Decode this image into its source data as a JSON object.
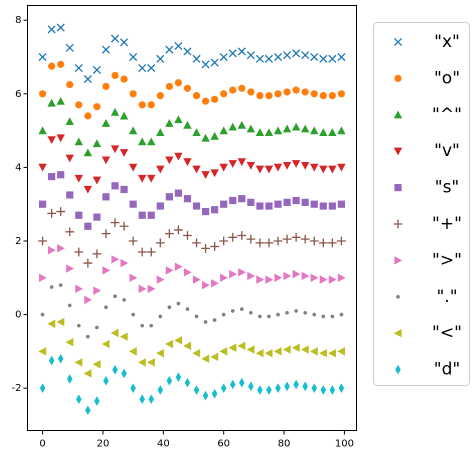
{
  "chart_data": {
    "type": "scatter",
    "x": [
      0,
      3,
      6,
      9,
      12,
      15,
      18,
      21,
      24,
      27,
      30,
      33,
      36,
      39,
      42,
      45,
      48,
      51,
      54,
      57,
      60,
      63,
      66,
      69,
      72,
      75,
      78,
      81,
      84,
      87,
      90,
      93,
      96,
      99
    ],
    "xlim": [
      -5,
      104
    ],
    "xticks": [
      0,
      20,
      40,
      60,
      80,
      100
    ],
    "ylim": [
      -3.15,
      8.4
    ],
    "yticks": [
      -2,
      0,
      2,
      4,
      6,
      8
    ],
    "legend": "outside right",
    "series": [
      {
        "name": "\"x\"",
        "marker": "x",
        "color": "#1f77b4",
        "values": [
          7,
          7.75,
          7.8,
          7.25,
          6.7,
          6.4,
          6.65,
          7.2,
          7.5,
          7.4,
          7,
          6.7,
          6.7,
          6.95,
          7.2,
          7.3,
          7.15,
          6.95,
          6.8,
          6.85,
          7,
          7.1,
          7.15,
          7.05,
          6.95,
          6.95,
          7,
          7.05,
          7.1,
          7.05,
          7,
          6.95,
          6.95,
          7
        ]
      },
      {
        "name": "\"o\"",
        "marker": "o",
        "color": "#ff7f0e",
        "values": [
          6,
          6.75,
          6.8,
          6.25,
          5.7,
          5.4,
          5.65,
          6.2,
          6.5,
          6.4,
          6,
          5.7,
          5.7,
          5.95,
          6.2,
          6.3,
          6.15,
          5.95,
          5.8,
          5.85,
          6,
          6.1,
          6.15,
          6.05,
          5.95,
          5.95,
          6,
          6.05,
          6.1,
          6.05,
          6,
          5.95,
          5.95,
          6
        ]
      },
      {
        "name": "\"^\"",
        "marker": "^",
        "color": "#2ca02c",
        "values": [
          5,
          5.75,
          5.8,
          5.25,
          4.7,
          4.4,
          4.65,
          5.2,
          5.5,
          5.4,
          5,
          4.7,
          4.7,
          4.95,
          5.2,
          5.3,
          5.15,
          4.95,
          4.8,
          4.85,
          5,
          5.1,
          5.15,
          5.05,
          4.95,
          4.95,
          5,
          5.05,
          5.1,
          5.05,
          5,
          4.95,
          4.95,
          5
        ]
      },
      {
        "name": "\"v\"",
        "marker": "v",
        "color": "#d62728",
        "values": [
          4,
          4.75,
          4.8,
          4.25,
          3.7,
          3.4,
          3.65,
          4.2,
          4.5,
          4.4,
          4,
          3.7,
          3.7,
          3.95,
          4.2,
          4.3,
          4.15,
          3.95,
          3.8,
          3.85,
          4,
          4.1,
          4.15,
          4.05,
          3.95,
          3.95,
          4,
          4.05,
          4.1,
          4.05,
          4,
          3.95,
          3.95,
          4
        ]
      },
      {
        "name": "\"s\"",
        "marker": "s",
        "color": "#9467bd",
        "values": [
          3,
          3.75,
          3.8,
          3.25,
          2.7,
          2.4,
          2.65,
          3.2,
          3.5,
          3.4,
          3,
          2.7,
          2.7,
          2.95,
          3.2,
          3.3,
          3.15,
          2.95,
          2.8,
          2.85,
          3,
          3.1,
          3.15,
          3.05,
          2.95,
          2.95,
          3,
          3.05,
          3.1,
          3.05,
          3,
          2.95,
          2.95,
          3
        ]
      },
      {
        "name": "\"+\"",
        "marker": "+",
        "color": "#8c564b",
        "values": [
          2,
          2.75,
          2.8,
          2.25,
          1.7,
          1.4,
          1.65,
          2.2,
          2.5,
          2.4,
          2,
          1.7,
          1.7,
          1.95,
          2.2,
          2.3,
          2.15,
          1.95,
          1.8,
          1.85,
          2,
          2.1,
          2.15,
          2.05,
          1.95,
          1.95,
          2,
          2.05,
          2.1,
          2.05,
          2,
          1.95,
          1.95,
          2
        ]
      },
      {
        "name": "\">\"",
        "marker": ">",
        "color": "#e377c2",
        "values": [
          1,
          1.75,
          1.8,
          1.25,
          0.7,
          0.4,
          0.65,
          1.2,
          1.5,
          1.4,
          1,
          0.7,
          0.7,
          0.95,
          1.2,
          1.3,
          1.15,
          0.95,
          0.8,
          0.85,
          1,
          1.1,
          1.15,
          1.05,
          0.95,
          0.95,
          1,
          1.05,
          1.1,
          1.05,
          1,
          0.95,
          0.95,
          1
        ]
      },
      {
        "name": "\".\"",
        "marker": ".",
        "color": "#7f7f7f",
        "values": [
          0,
          0.75,
          0.8,
          0.25,
          -0.3,
          -0.6,
          -0.35,
          0.2,
          0.5,
          0.4,
          0,
          -0.3,
          -0.3,
          -0.05,
          0.2,
          0.3,
          0.15,
          -0.05,
          -0.2,
          -0.15,
          0,
          0.1,
          0.15,
          0.05,
          -0.05,
          -0.05,
          0,
          0.05,
          0.1,
          0.05,
          0,
          -0.05,
          -0.05,
          0
        ]
      },
      {
        "name": "\"<\"",
        "marker": "<",
        "color": "#bcbd22",
        "values": [
          -1,
          -0.25,
          -0.2,
          -0.75,
          -1.3,
          -1.6,
          -1.35,
          -0.8,
          -0.5,
          -0.6,
          -1,
          -1.3,
          -1.3,
          -1.05,
          -0.8,
          -0.7,
          -0.85,
          -1.05,
          -1.2,
          -1.15,
          -1,
          -0.9,
          -0.85,
          -0.95,
          -1.05,
          -1.05,
          -1,
          -0.95,
          -0.9,
          -0.95,
          -1,
          -1.05,
          -1.05,
          -1
        ]
      },
      {
        "name": "\"d\"",
        "marker": "d",
        "color": "#17becf",
        "values": [
          -2,
          -1.25,
          -1.2,
          -1.75,
          -2.3,
          -2.6,
          -2.35,
          -1.8,
          -1.5,
          -1.6,
          -2,
          -2.3,
          -2.3,
          -2.05,
          -1.8,
          -1.7,
          -1.85,
          -2.05,
          -2.2,
          -2.15,
          -2,
          -1.9,
          -1.85,
          -1.95,
          -2.05,
          -2.05,
          -2,
          -1.95,
          -1.9,
          -1.95,
          -2,
          -2.05,
          -2.05,
          -2
        ]
      }
    ]
  }
}
